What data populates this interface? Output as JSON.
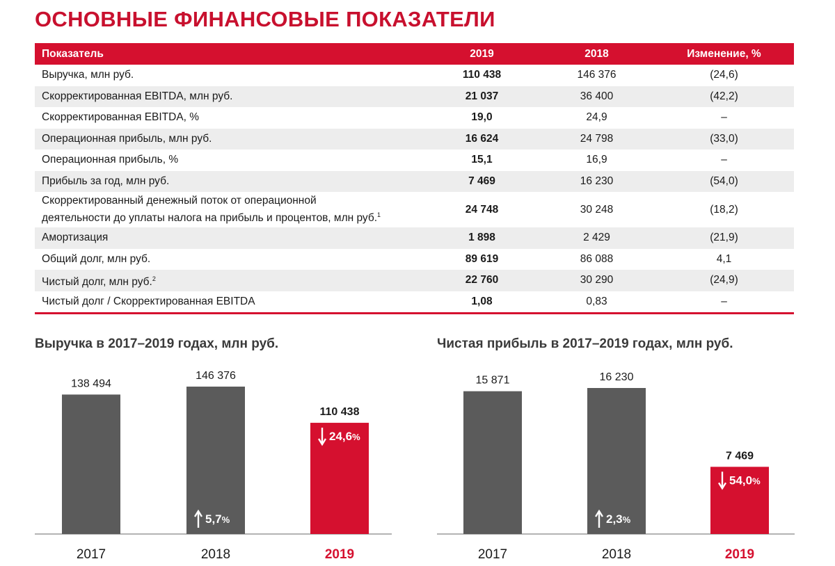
{
  "page_title": "ОСНОВНЫЕ ФИНАНСОВЫЕ ПОКАЗАТЕЛИ",
  "table": {
    "headers": [
      "Показатель",
      "2019",
      "2018",
      "Изменение, %"
    ],
    "rows": [
      {
        "label": "Выручка, млн руб.",
        "sup": "",
        "v2019": "110 438",
        "v2018": "146 376",
        "change": "(24,6)"
      },
      {
        "label": "Скорректированная EBITDA, млн руб.",
        "sup": "",
        "v2019": "21 037",
        "v2018": "36 400",
        "change": "(42,2)"
      },
      {
        "label": "Скорректированная EBITDA, %",
        "sup": "",
        "v2019": "19,0",
        "v2018": "24,9",
        "change": "–"
      },
      {
        "label": "Операционная прибыль, млн руб.",
        "sup": "",
        "v2019": "16 624",
        "v2018": "24 798",
        "change": "(33,0)"
      },
      {
        "label": "Операционная прибыль, %",
        "sup": "",
        "v2019": "15,1",
        "v2018": "16,9",
        "change": "–"
      },
      {
        "label": "Прибыль за год, млн руб.",
        "sup": "",
        "v2019": "7 469",
        "v2018": "16 230",
        "change": "(54,0)"
      },
      {
        "label_line1": "Скорректированный денежный поток от операционной",
        "label_line2": "деятельности до уплаты налога на прибыль и процентов, млн руб.",
        "sup": "1",
        "v2019": "24 748",
        "v2018": "30 248",
        "change": "(18,2)"
      },
      {
        "label": "Амортизация",
        "sup": "",
        "v2019": "1 898",
        "v2018": "2 429",
        "change": "(21,9)"
      },
      {
        "label": "Общий долг, млн руб.",
        "sup": "",
        "v2019": "89 619",
        "v2018": "86 088",
        "change": "4,1"
      },
      {
        "label": "Чистый долг, млн руб.",
        "sup": "2",
        "v2019": "22 760",
        "v2018": "30 290",
        "change": "(24,9)"
      },
      {
        "label": "Чистый долг / Скорректированная EBITDA",
        "sup": "",
        "v2019": "1,08",
        "v2018": "0,83",
        "change": "–"
      }
    ]
  },
  "colors": {
    "accent": "#d5102f",
    "bar": "#5b5b5b",
    "title": "#c8102e",
    "row_alt": "#ededed"
  },
  "chart_data": [
    {
      "type": "bar",
      "title": "Выручка в 2017–2019 годах, млн руб.",
      "categories": [
        "2017",
        "2018",
        "2019"
      ],
      "values": [
        138494,
        146376,
        110438
      ],
      "value_labels": [
        "138 494",
        "146 376",
        "110 438"
      ],
      "highlight": "2019",
      "changes": [
        {
          "category": "2018",
          "direction": "up",
          "text": "5,7",
          "unit": "%"
        },
        {
          "category": "2019",
          "direction": "down",
          "text": "24,6",
          "unit": "%"
        }
      ],
      "xlabel": "",
      "ylabel": "",
      "ylim": [
        0,
        150000
      ]
    },
    {
      "type": "bar",
      "title": "Чистая прибыль в 2017–2019 годах, млн руб.",
      "categories": [
        "2017",
        "2018",
        "2019"
      ],
      "values": [
        15871,
        16230,
        7469
      ],
      "value_labels": [
        "15 871",
        "16 230",
        "7 469"
      ],
      "highlight": "2019",
      "changes": [
        {
          "category": "2018",
          "direction": "up",
          "text": "2,3",
          "unit": "%"
        },
        {
          "category": "2019",
          "direction": "down",
          "text": "54,0",
          "unit": "%"
        }
      ],
      "xlabel": "",
      "ylabel": "",
      "ylim": [
        0,
        17000
      ]
    }
  ]
}
